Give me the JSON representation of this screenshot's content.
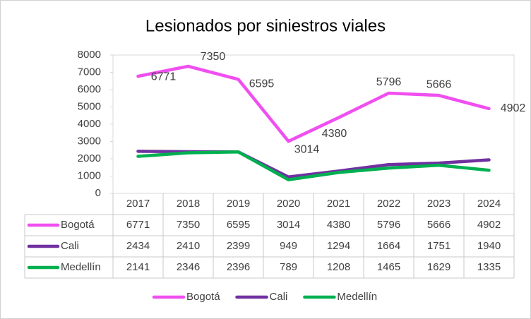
{
  "chart_data": {
    "type": "line",
    "title": "Lesionados por siniestros viales",
    "categories": [
      "2017",
      "2018",
      "2019",
      "2020",
      "2021",
      "2022",
      "2023",
      "2024"
    ],
    "series": [
      {
        "name": "Bogotá",
        "color": "#f04ff0",
        "values": [
          6771,
          7350,
          6595,
          3014,
          4380,
          5796,
          5666,
          4902
        ],
        "data_labels": true
      },
      {
        "name": "Cali",
        "color": "#7030a0",
        "values": [
          2434,
          2410,
          2399,
          949,
          1294,
          1664,
          1751,
          1940
        ],
        "data_labels": false
      },
      {
        "name": "Medellín",
        "color": "#00b050",
        "values": [
          2141,
          2346,
          2396,
          789,
          1208,
          1465,
          1629,
          1335
        ],
        "data_labels": false
      }
    ],
    "ylim": [
      0,
      8000
    ],
    "yticks": [
      0,
      1000,
      2000,
      3000,
      4000,
      5000,
      6000,
      7000,
      8000
    ],
    "grid": false,
    "data_table": true,
    "legend": "bottom"
  }
}
